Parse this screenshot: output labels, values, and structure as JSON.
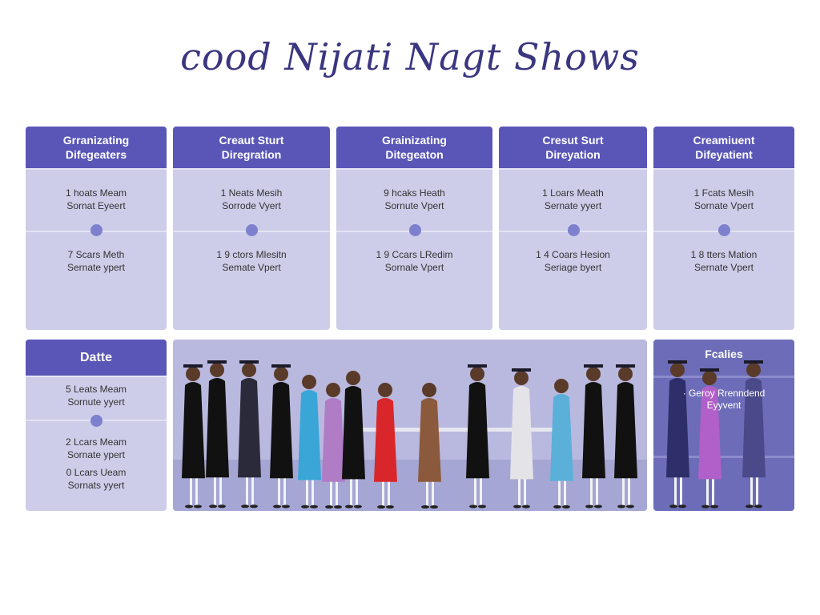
{
  "title": "cood Nijati Nagt Shows",
  "cards": [
    {
      "header": [
        "Grranizating",
        "Difegeaters"
      ],
      "top": [
        "1 hoats Meam",
        "Sornat Eyeert"
      ],
      "bottom": [
        "7 Scars Meth",
        "Sernate ypert"
      ]
    },
    {
      "header": [
        "Creaut Sturt",
        "Diregration"
      ],
      "top": [
        "1 Neats Mesih",
        "Sorrode Vyert"
      ],
      "bottom": [
        "1 9 ctors Mlesitn",
        "Semate Vpert"
      ]
    },
    {
      "header": [
        "Grainizating",
        "Ditegeaton"
      ],
      "top": [
        "9 hcaks Heath",
        "Sornute Vpert"
      ],
      "bottom": [
        "1 9 Ccars LRedim",
        "Sornale Vpert"
      ]
    },
    {
      "header": [
        "Cresut Surt",
        "Direyation"
      ],
      "top": [
        "1 Loars Meath",
        "Sernate yyert"
      ],
      "bottom": [
        "1 4 Coars Hesion",
        "Seriage byert"
      ]
    },
    {
      "header": [
        "Creamiuent",
        "Difeyatient"
      ],
      "top": [
        "1 Fcats Mesih",
        "Sornate Vpert"
      ],
      "bottom": [
        "1 8 tters Mation",
        "Sernate Vpert"
      ]
    }
  ],
  "date_card": {
    "header": "Datte",
    "items": [
      [
        "5 Leats Meam",
        "Sornute yyert"
      ],
      [
        "2 Lcars Meam",
        "Sornate ypert"
      ],
      [
        "0 Lcars Ueam",
        "Sornats yyert"
      ]
    ]
  },
  "features_card": {
    "header": "Fcalies",
    "body": [
      "· Geroy Rrenndend",
      "Eyyvent"
    ]
  },
  "colors": {
    "header": "#5a56b8",
    "card": "#cdcdea",
    "dot": "#7d80cc",
    "title": "#3b3680"
  }
}
